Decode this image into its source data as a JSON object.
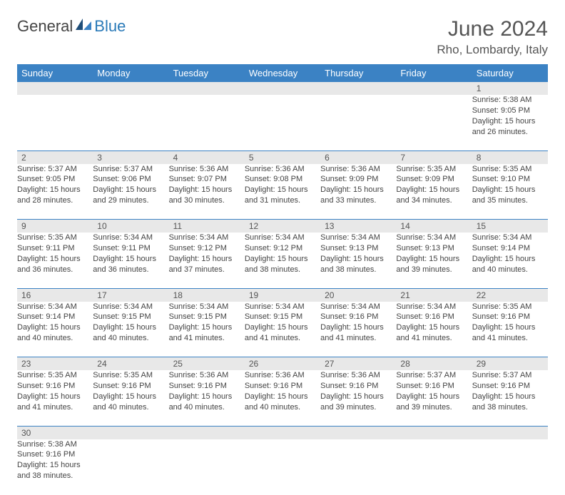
{
  "logo": {
    "part1": "General",
    "part2": "Blue"
  },
  "header": {
    "month_title": "June 2024",
    "location": "Rho, Lombardy, Italy"
  },
  "colors": {
    "header_bg": "#3b82c4",
    "header_fg": "#ffffff",
    "daynum_bg": "#e8e8e8",
    "border": "#3b82c4"
  },
  "weekdays": [
    "Sunday",
    "Monday",
    "Tuesday",
    "Wednesday",
    "Thursday",
    "Friday",
    "Saturday"
  ],
  "weeks": [
    [
      null,
      null,
      null,
      null,
      null,
      null,
      {
        "day": "1",
        "sunrise": "Sunrise: 5:38 AM",
        "sunset": "Sunset: 9:05 PM",
        "daylight": "Daylight: 15 hours and 26 minutes."
      }
    ],
    [
      {
        "day": "2",
        "sunrise": "Sunrise: 5:37 AM",
        "sunset": "Sunset: 9:05 PM",
        "daylight": "Daylight: 15 hours and 28 minutes."
      },
      {
        "day": "3",
        "sunrise": "Sunrise: 5:37 AM",
        "sunset": "Sunset: 9:06 PM",
        "daylight": "Daylight: 15 hours and 29 minutes."
      },
      {
        "day": "4",
        "sunrise": "Sunrise: 5:36 AM",
        "sunset": "Sunset: 9:07 PM",
        "daylight": "Daylight: 15 hours and 30 minutes."
      },
      {
        "day": "5",
        "sunrise": "Sunrise: 5:36 AM",
        "sunset": "Sunset: 9:08 PM",
        "daylight": "Daylight: 15 hours and 31 minutes."
      },
      {
        "day": "6",
        "sunrise": "Sunrise: 5:36 AM",
        "sunset": "Sunset: 9:09 PM",
        "daylight": "Daylight: 15 hours and 33 minutes."
      },
      {
        "day": "7",
        "sunrise": "Sunrise: 5:35 AM",
        "sunset": "Sunset: 9:09 PM",
        "daylight": "Daylight: 15 hours and 34 minutes."
      },
      {
        "day": "8",
        "sunrise": "Sunrise: 5:35 AM",
        "sunset": "Sunset: 9:10 PM",
        "daylight": "Daylight: 15 hours and 35 minutes."
      }
    ],
    [
      {
        "day": "9",
        "sunrise": "Sunrise: 5:35 AM",
        "sunset": "Sunset: 9:11 PM",
        "daylight": "Daylight: 15 hours and 36 minutes."
      },
      {
        "day": "10",
        "sunrise": "Sunrise: 5:34 AM",
        "sunset": "Sunset: 9:11 PM",
        "daylight": "Daylight: 15 hours and 36 minutes."
      },
      {
        "day": "11",
        "sunrise": "Sunrise: 5:34 AM",
        "sunset": "Sunset: 9:12 PM",
        "daylight": "Daylight: 15 hours and 37 minutes."
      },
      {
        "day": "12",
        "sunrise": "Sunrise: 5:34 AM",
        "sunset": "Sunset: 9:12 PM",
        "daylight": "Daylight: 15 hours and 38 minutes."
      },
      {
        "day": "13",
        "sunrise": "Sunrise: 5:34 AM",
        "sunset": "Sunset: 9:13 PM",
        "daylight": "Daylight: 15 hours and 38 minutes."
      },
      {
        "day": "14",
        "sunrise": "Sunrise: 5:34 AM",
        "sunset": "Sunset: 9:13 PM",
        "daylight": "Daylight: 15 hours and 39 minutes."
      },
      {
        "day": "15",
        "sunrise": "Sunrise: 5:34 AM",
        "sunset": "Sunset: 9:14 PM",
        "daylight": "Daylight: 15 hours and 40 minutes."
      }
    ],
    [
      {
        "day": "16",
        "sunrise": "Sunrise: 5:34 AM",
        "sunset": "Sunset: 9:14 PM",
        "daylight": "Daylight: 15 hours and 40 minutes."
      },
      {
        "day": "17",
        "sunrise": "Sunrise: 5:34 AM",
        "sunset": "Sunset: 9:15 PM",
        "daylight": "Daylight: 15 hours and 40 minutes."
      },
      {
        "day": "18",
        "sunrise": "Sunrise: 5:34 AM",
        "sunset": "Sunset: 9:15 PM",
        "daylight": "Daylight: 15 hours and 41 minutes."
      },
      {
        "day": "19",
        "sunrise": "Sunrise: 5:34 AM",
        "sunset": "Sunset: 9:15 PM",
        "daylight": "Daylight: 15 hours and 41 minutes."
      },
      {
        "day": "20",
        "sunrise": "Sunrise: 5:34 AM",
        "sunset": "Sunset: 9:16 PM",
        "daylight": "Daylight: 15 hours and 41 minutes."
      },
      {
        "day": "21",
        "sunrise": "Sunrise: 5:34 AM",
        "sunset": "Sunset: 9:16 PM",
        "daylight": "Daylight: 15 hours and 41 minutes."
      },
      {
        "day": "22",
        "sunrise": "Sunrise: 5:35 AM",
        "sunset": "Sunset: 9:16 PM",
        "daylight": "Daylight: 15 hours and 41 minutes."
      }
    ],
    [
      {
        "day": "23",
        "sunrise": "Sunrise: 5:35 AM",
        "sunset": "Sunset: 9:16 PM",
        "daylight": "Daylight: 15 hours and 41 minutes."
      },
      {
        "day": "24",
        "sunrise": "Sunrise: 5:35 AM",
        "sunset": "Sunset: 9:16 PM",
        "daylight": "Daylight: 15 hours and 40 minutes."
      },
      {
        "day": "25",
        "sunrise": "Sunrise: 5:36 AM",
        "sunset": "Sunset: 9:16 PM",
        "daylight": "Daylight: 15 hours and 40 minutes."
      },
      {
        "day": "26",
        "sunrise": "Sunrise: 5:36 AM",
        "sunset": "Sunset: 9:16 PM",
        "daylight": "Daylight: 15 hours and 40 minutes."
      },
      {
        "day": "27",
        "sunrise": "Sunrise: 5:36 AM",
        "sunset": "Sunset: 9:16 PM",
        "daylight": "Daylight: 15 hours and 39 minutes."
      },
      {
        "day": "28",
        "sunrise": "Sunrise: 5:37 AM",
        "sunset": "Sunset: 9:16 PM",
        "daylight": "Daylight: 15 hours and 39 minutes."
      },
      {
        "day": "29",
        "sunrise": "Sunrise: 5:37 AM",
        "sunset": "Sunset: 9:16 PM",
        "daylight": "Daylight: 15 hours and 38 minutes."
      }
    ],
    [
      {
        "day": "30",
        "sunrise": "Sunrise: 5:38 AM",
        "sunset": "Sunset: 9:16 PM",
        "daylight": "Daylight: 15 hours and 38 minutes."
      },
      null,
      null,
      null,
      null,
      null,
      null
    ]
  ]
}
